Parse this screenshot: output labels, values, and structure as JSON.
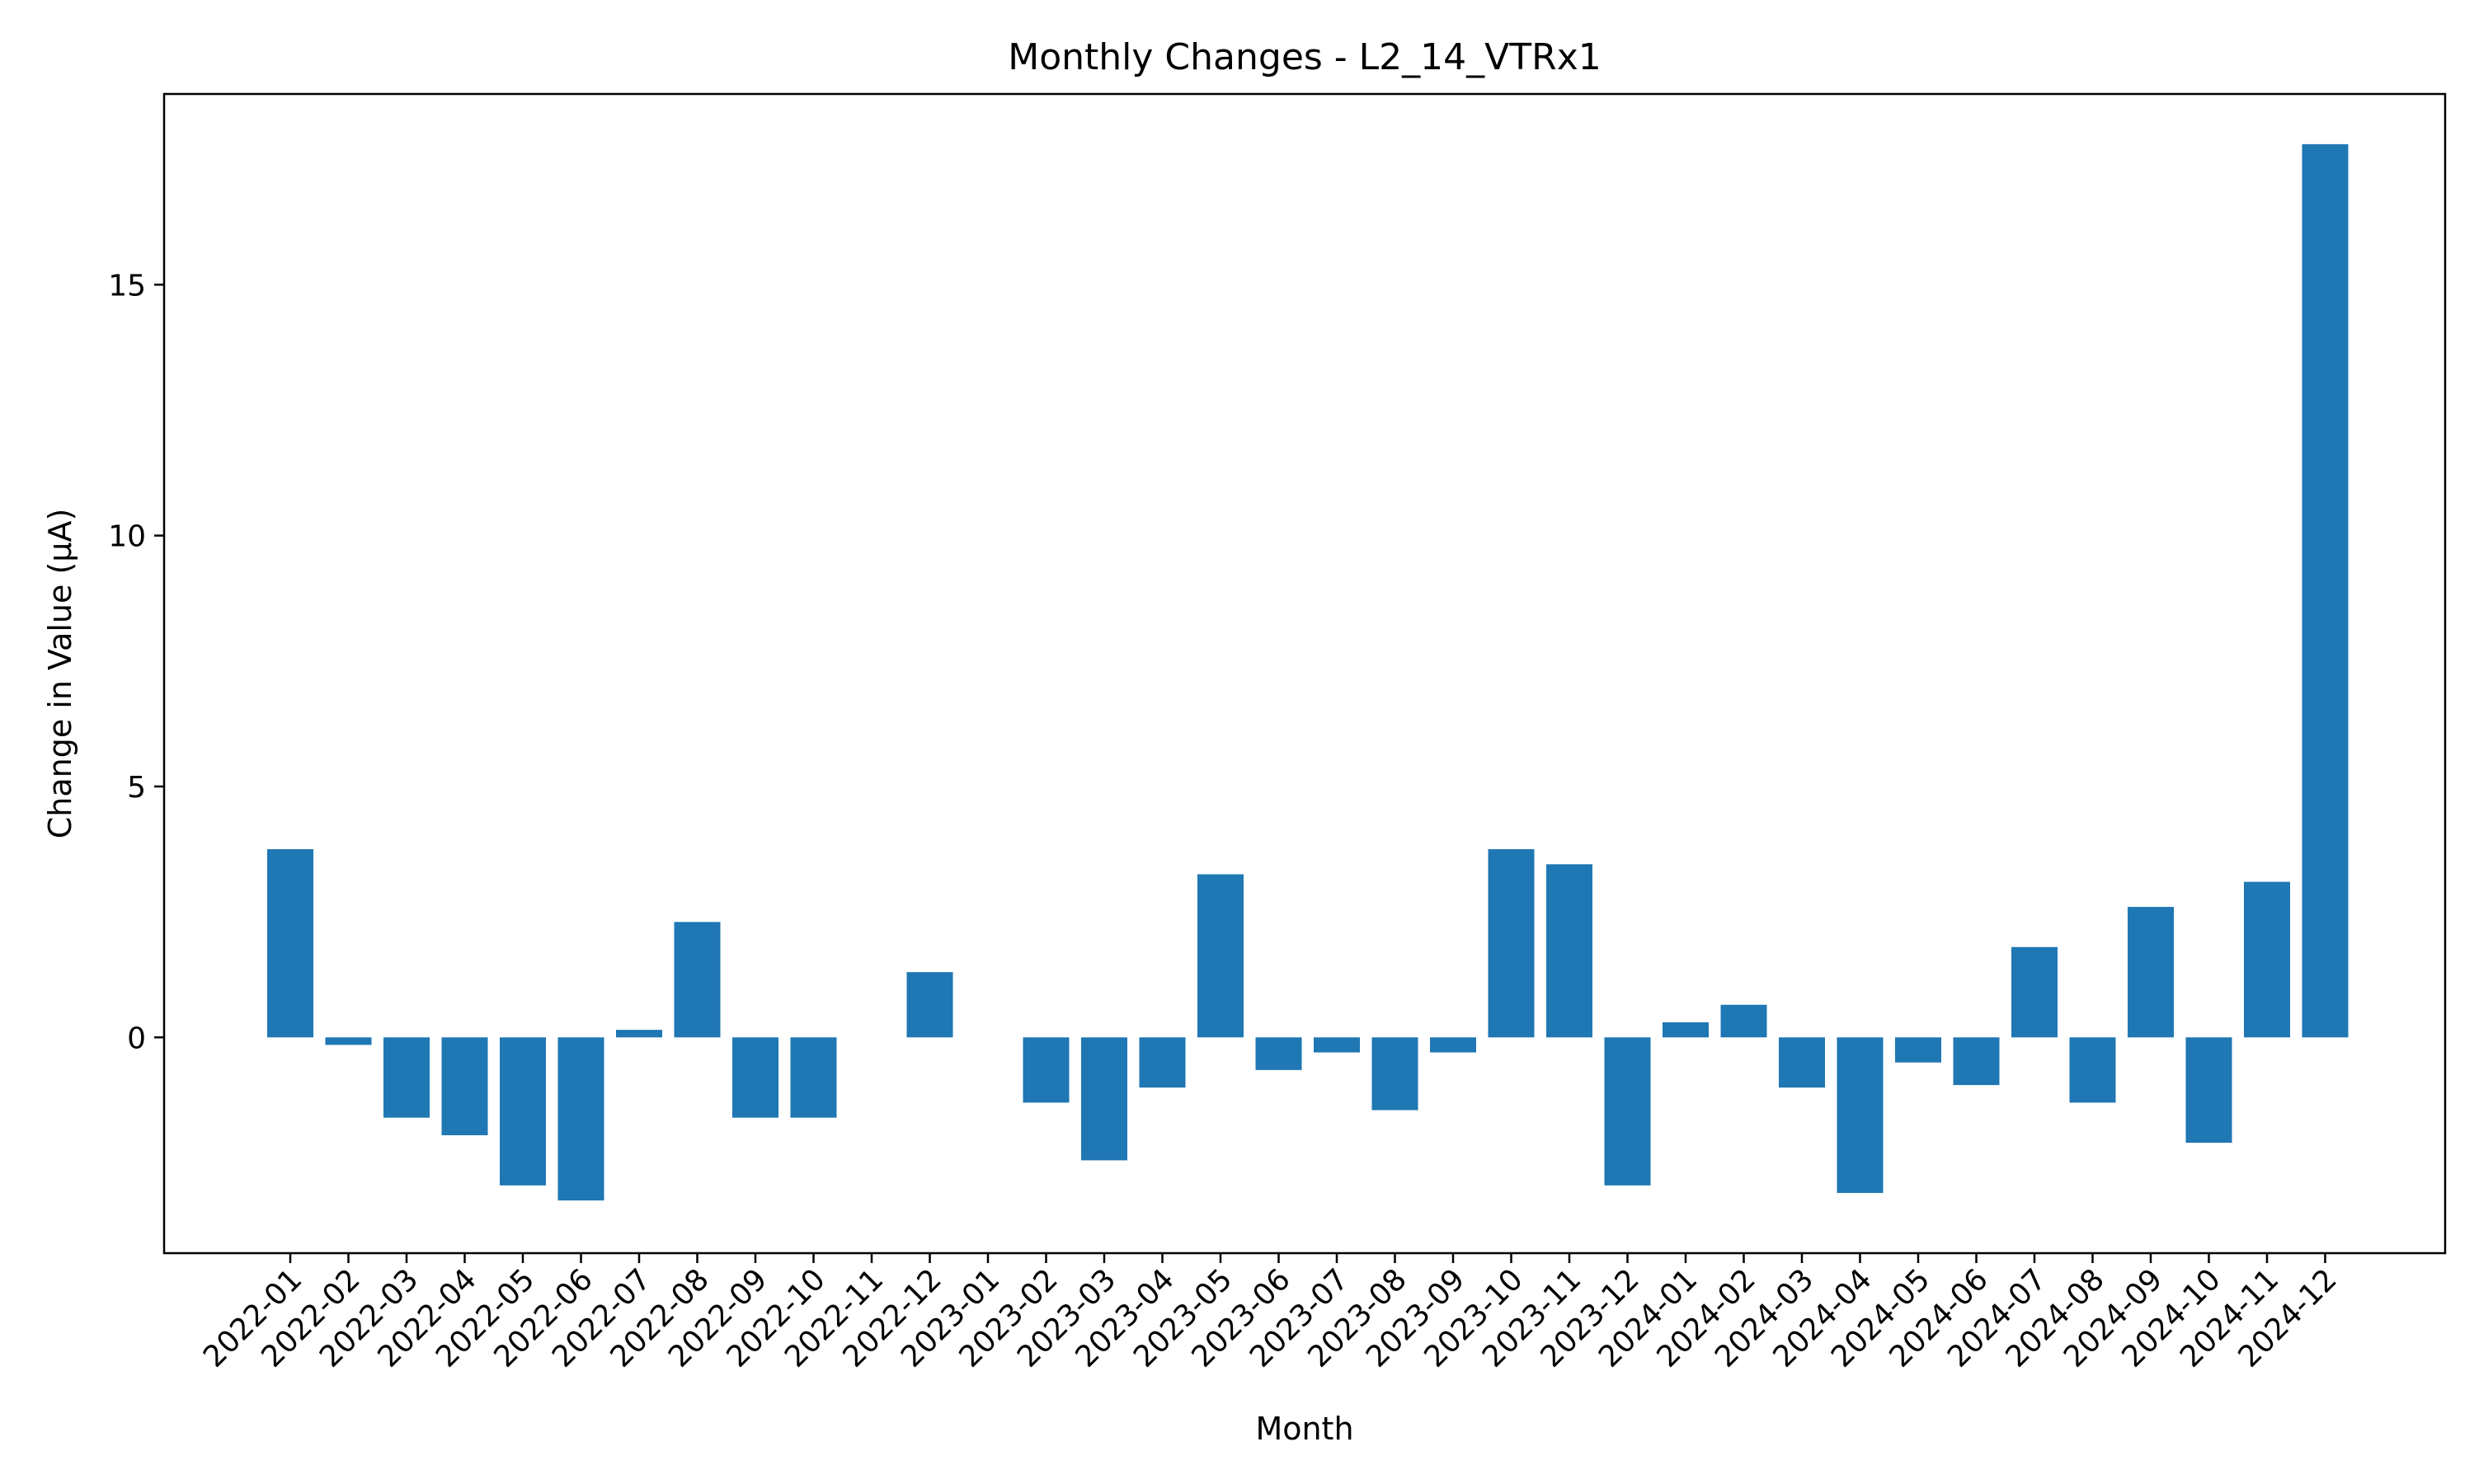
{
  "chart_data": {
    "type": "bar",
    "title": "Monthly Changes - L2_14_VTRx1",
    "xlabel": "Month",
    "ylabel": "Change in Value (μA)",
    "ylim": [
      -4.3,
      18.8
    ],
    "yticks": [
      0,
      5,
      10,
      15
    ],
    "grid": false,
    "color": "#1f77b4",
    "categories": [
      "2022-01",
      "2022-02",
      "2022-03",
      "2022-04",
      "2022-05",
      "2022-06",
      "2022-07",
      "2022-08",
      "2022-09",
      "2022-10",
      "2022-11",
      "2022-12",
      "2023-01",
      "2023-02",
      "2023-03",
      "2023-04",
      "2023-05",
      "2023-06",
      "2023-07",
      "2023-08",
      "2023-09",
      "2023-10",
      "2023-11",
      "2023-12",
      "2024-01",
      "2024-02",
      "2024-03",
      "2024-04",
      "2024-05",
      "2024-06",
      "2024-07",
      "2024-08",
      "2024-09",
      "2024-10",
      "2024-11",
      "2024-12"
    ],
    "values": [
      3.75,
      -0.15,
      -1.6,
      -1.95,
      -2.95,
      -3.25,
      0.15,
      2.3,
      -1.6,
      -1.6,
      0.0,
      1.3,
      0.0,
      -1.3,
      -2.45,
      -1.0,
      3.25,
      -0.65,
      -0.3,
      -1.45,
      -0.3,
      3.75,
      3.45,
      -2.95,
      0.3,
      0.65,
      -1.0,
      -3.1,
      -0.5,
      -0.95,
      1.8,
      -1.3,
      2.6,
      -2.1,
      3.1,
      17.8
    ]
  }
}
